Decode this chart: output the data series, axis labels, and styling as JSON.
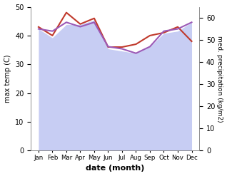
{
  "months": [
    "Jan",
    "Feb",
    "Mar",
    "Apr",
    "May",
    "Jun",
    "Jul",
    "Aug",
    "Sep",
    "Oct",
    "Nov",
    "Dec"
  ],
  "temp_max": [
    43,
    40,
    48,
    44,
    46,
    36,
    36,
    37,
    40,
    41,
    43,
    38
  ],
  "precip": [
    55,
    54,
    58,
    56,
    58,
    47,
    46,
    44,
    47,
    54,
    55,
    58
  ],
  "precip_fill": [
    55,
    51,
    57,
    57,
    59,
    46,
    45,
    44,
    47,
    53,
    54,
    58
  ],
  "temp_color": "#c0392b",
  "precip_color": "#9b59b6",
  "fill_color": "#b0b8ee",
  "fill_alpha": 0.7,
  "xlabel": "date (month)",
  "ylabel_left": "max temp (C)",
  "ylabel_right": "med. precipitation (kg/m2)",
  "ylim_left": [
    0,
    50
  ],
  "ylim_right": [
    0,
    65
  ],
  "yticks_left": [
    0,
    10,
    20,
    30,
    40,
    50
  ],
  "yticks_right": [
    0,
    10,
    20,
    30,
    40,
    50,
    60
  ]
}
